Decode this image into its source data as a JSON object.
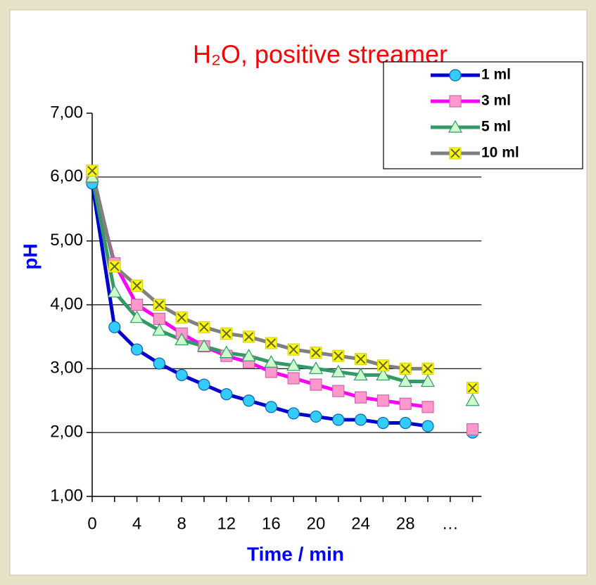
{
  "chart_data": {
    "type": "line",
    "title": "H₂O, positive streamer",
    "x_label": "Time / min",
    "y_label": "pH",
    "categories": [
      "0",
      null,
      "4",
      null,
      "8",
      null,
      "12",
      null,
      "16",
      null,
      "20",
      null,
      "24",
      null,
      "28",
      null,
      "…",
      null
    ],
    "ylim": [
      1,
      7
    ],
    "yticks": [
      {
        "value": 1,
        "label": "1,00"
      },
      {
        "value": 2,
        "label": "2,00"
      },
      {
        "value": 3,
        "label": "3,00"
      },
      {
        "value": 4,
        "label": "4,00"
      },
      {
        "value": 5,
        "label": "5,00"
      },
      {
        "value": 6,
        "label": "6,00"
      },
      {
        "value": 7,
        "label": "7,00"
      }
    ],
    "grid": true,
    "legend": "upper right",
    "series": [
      {
        "name": "1 ml",
        "color": "#0000cc",
        "marker": "circle",
        "marker_color": "#33ccff",
        "values": [
          5.9,
          3.65,
          3.3,
          3.08,
          2.9,
          2.75,
          2.6,
          2.5,
          2.4,
          2.3,
          2.25,
          2.2,
          2.2,
          2.15,
          2.15,
          2.1,
          null,
          2.0
        ]
      },
      {
        "name": "3 ml",
        "color": "#ff00ff",
        "marker": "square",
        "marker_color": "#ff99cc",
        "values": [
          6.0,
          4.65,
          4.0,
          3.78,
          3.55,
          3.35,
          3.2,
          3.1,
          2.95,
          2.85,
          2.75,
          2.65,
          2.55,
          2.5,
          2.45,
          2.4,
          null,
          2.05
        ]
      },
      {
        "name": "5 ml",
        "color": "#339966",
        "marker": "triangle",
        "marker_color": "#ccffcc",
        "values": [
          6.0,
          4.2,
          3.8,
          3.6,
          3.45,
          3.35,
          3.25,
          3.2,
          3.1,
          3.05,
          3.0,
          2.95,
          2.9,
          2.9,
          2.8,
          2.8,
          null,
          2.5
        ]
      },
      {
        "name": "10 ml",
        "color": "#808080",
        "marker": "cross",
        "marker_color": "#ffff00",
        "values": [
          6.1,
          4.6,
          4.3,
          4.0,
          3.8,
          3.65,
          3.55,
          3.5,
          3.4,
          3.3,
          3.25,
          3.2,
          3.15,
          3.05,
          3.0,
          3.0,
          null,
          2.7
        ]
      }
    ]
  }
}
